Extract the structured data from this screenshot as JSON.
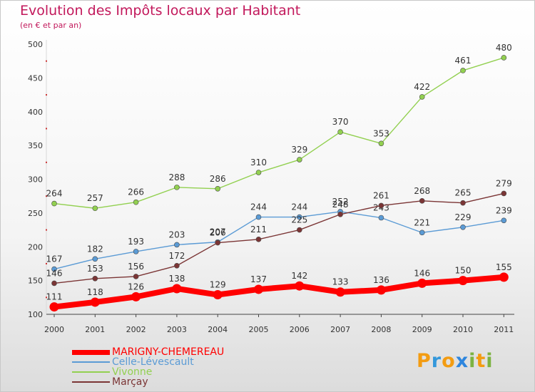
{
  "header": {
    "title": "Evolution des Impôts locaux par Habitant",
    "subtitle": "(en € et par an)"
  },
  "logo": {
    "text": "Proxiti",
    "letters": [
      {
        "ch": "P",
        "color": "#f39c12"
      },
      {
        "ch": "r",
        "color": "#3498db"
      },
      {
        "ch": "o",
        "color": "#f39c12"
      },
      {
        "ch": "x",
        "color": "#2e86de"
      },
      {
        "ch": "i",
        "color": "#7cb342"
      },
      {
        "ch": "t",
        "color": "#f39c12"
      },
      {
        "ch": "i",
        "color": "#7cb342"
      }
    ]
  },
  "chart_data": {
    "type": "line",
    "title": "Evolution des Impôts locaux par Habitant",
    "subtitle": "(en € et par an)",
    "xlabel": "",
    "ylabel": "",
    "categories": [
      "2000",
      "2001",
      "2002",
      "2003",
      "2004",
      "2005",
      "2006",
      "2007",
      "2008",
      "2009",
      "2010",
      "2011"
    ],
    "ylim": [
      100,
      500
    ],
    "yticks": [
      100,
      150,
      200,
      250,
      300,
      350,
      400,
      450,
      500
    ],
    "grid": false,
    "legend": "bottom-left",
    "series": [
      {
        "name": "MARIGNY-CHEMEREAU",
        "color": "#ff0000",
        "label_color": "#ff0000",
        "thick": true,
        "values": [
          111,
          118,
          126,
          138,
          129,
          137,
          142,
          133,
          136,
          146,
          150,
          155
        ]
      },
      {
        "name": "Celle-Lévescault",
        "color": "#5b9bd5",
        "label_color": "#5b9bd5",
        "thick": false,
        "values": [
          167,
          182,
          193,
          203,
          207,
          244,
          244,
          252,
          243,
          221,
          229,
          239
        ]
      },
      {
        "name": "Vivonne",
        "color": "#92d050",
        "label_color": "#92d050",
        "thick": false,
        "values": [
          264,
          257,
          266,
          288,
          286,
          310,
          329,
          370,
          353,
          422,
          461,
          480
        ]
      },
      {
        "name": "Marçay",
        "color": "#7b3535",
        "label_color": "#7b3535",
        "thick": false,
        "values": [
          146,
          153,
          156,
          172,
          206,
          211,
          225,
          248,
          261,
          268,
          265,
          279
        ]
      }
    ]
  }
}
